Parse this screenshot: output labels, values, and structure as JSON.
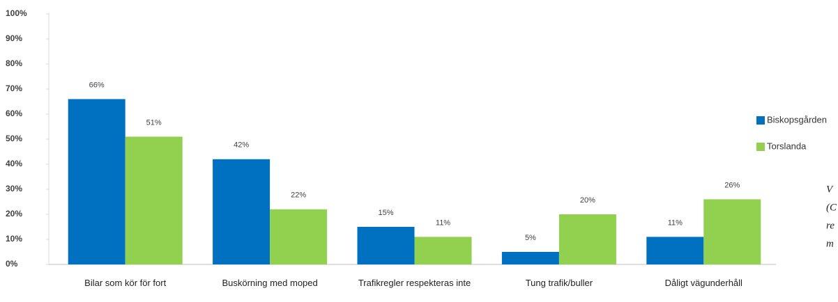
{
  "chart_data": {
    "type": "bar",
    "categories": [
      "Bilar som kör för fort",
      "Buskörning med moped",
      "Trafikregler respekteras inte",
      "Tung trafik/buller",
      "Dåligt vägunderhåll"
    ],
    "series": [
      {
        "name": "Biskopsgården",
        "color": "#0070c0",
        "values": [
          66,
          42,
          15,
          5,
          11
        ],
        "value_labels": [
          "66%",
          "42%",
          "15%",
          "5%",
          "11%"
        ]
      },
      {
        "name": "Torslanda",
        "color": "#92d050",
        "values": [
          51,
          22,
          11,
          20,
          26
        ],
        "value_labels": [
          "51%",
          "22%",
          "11%",
          "20%",
          "26%"
        ]
      }
    ],
    "ylim": [
      0,
      100
    ],
    "yticks": [
      {
        "value": 0,
        "label": "0%"
      },
      {
        "value": 10,
        "label": "10%"
      },
      {
        "value": 20,
        "label": "20%"
      },
      {
        "value": 30,
        "label": "30%"
      },
      {
        "value": 40,
        "label": "40%"
      },
      {
        "value": 50,
        "label": "50%"
      },
      {
        "value": 60,
        "label": "60%"
      },
      {
        "value": 70,
        "label": "70%"
      },
      {
        "value": 80,
        "label": "80%"
      },
      {
        "value": 90,
        "label": "90%"
      },
      {
        "value": 100,
        "label": "100%"
      }
    ],
    "grid": false,
    "legend": "right",
    "side_text": [
      "V",
      "(C",
      "re",
      "m"
    ]
  }
}
